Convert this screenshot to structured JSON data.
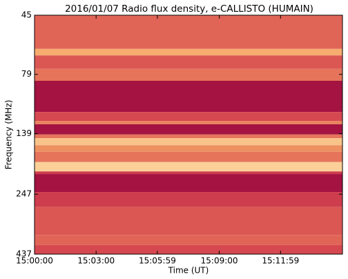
{
  "chart_data": {
    "type": "spectrogram",
    "title": "2016/01/07  Radio flux density, e-CALLISTO (HUMAIN)",
    "xlabel": "Time (UT)",
    "ylabel": "Frequency (MHz)",
    "xlim": [
      54000,
      54900
    ],
    "xticks": [
      {
        "value": 54000,
        "label": "15:00:00"
      },
      {
        "value": 54180,
        "label": "15:03:00"
      },
      {
        "value": 54359,
        "label": "15:05:59"
      },
      {
        "value": 54540,
        "label": "15:09:00"
      },
      {
        "value": 54719,
        "label": "15:11:59"
      }
    ],
    "ylim": [
      45,
      437
    ],
    "yticks": [
      45,
      79,
      139,
      247,
      437
    ],
    "ylog": true,
    "yinverted": true,
    "colormap": [
      "#9b0a3f",
      "#d4434f",
      "#f5a566",
      "#fff3c0"
    ],
    "bands": [
      {
        "range": [
          45,
          62
        ],
        "level": 0.45
      },
      {
        "range": [
          62,
          66
        ],
        "level": 0.7
      },
      {
        "range": [
          66,
          75
        ],
        "level": 0.4
      },
      {
        "range": [
          75,
          84
        ],
        "level": 0.5
      },
      {
        "range": [
          84,
          113
        ],
        "level": 0.05
      },
      {
        "range": [
          113,
          123
        ],
        "level": 0.35
      },
      {
        "range": [
          123,
          127
        ],
        "level": 0.55
      },
      {
        "range": [
          127,
          140
        ],
        "level": 0.05
      },
      {
        "range": [
          140,
          145
        ],
        "level": 0.5
      },
      {
        "range": [
          145,
          155
        ],
        "level": 0.8
      },
      {
        "range": [
          155,
          165
        ],
        "level": 0.6
      },
      {
        "range": [
          165,
          182
        ],
        "level": 0.5
      },
      {
        "range": [
          182,
          199
        ],
        "level": 0.85
      },
      {
        "range": [
          199,
          204
        ],
        "level": 0.3
      },
      {
        "range": [
          204,
          242
        ],
        "level": 0.05
      },
      {
        "range": [
          242,
          279
        ],
        "level": 0.3
      },
      {
        "range": [
          279,
          364
        ],
        "level": 0.4
      },
      {
        "range": [
          364,
          401
        ],
        "level": 0.45
      },
      {
        "range": [
          401,
          437
        ],
        "level": 0.35
      }
    ]
  }
}
